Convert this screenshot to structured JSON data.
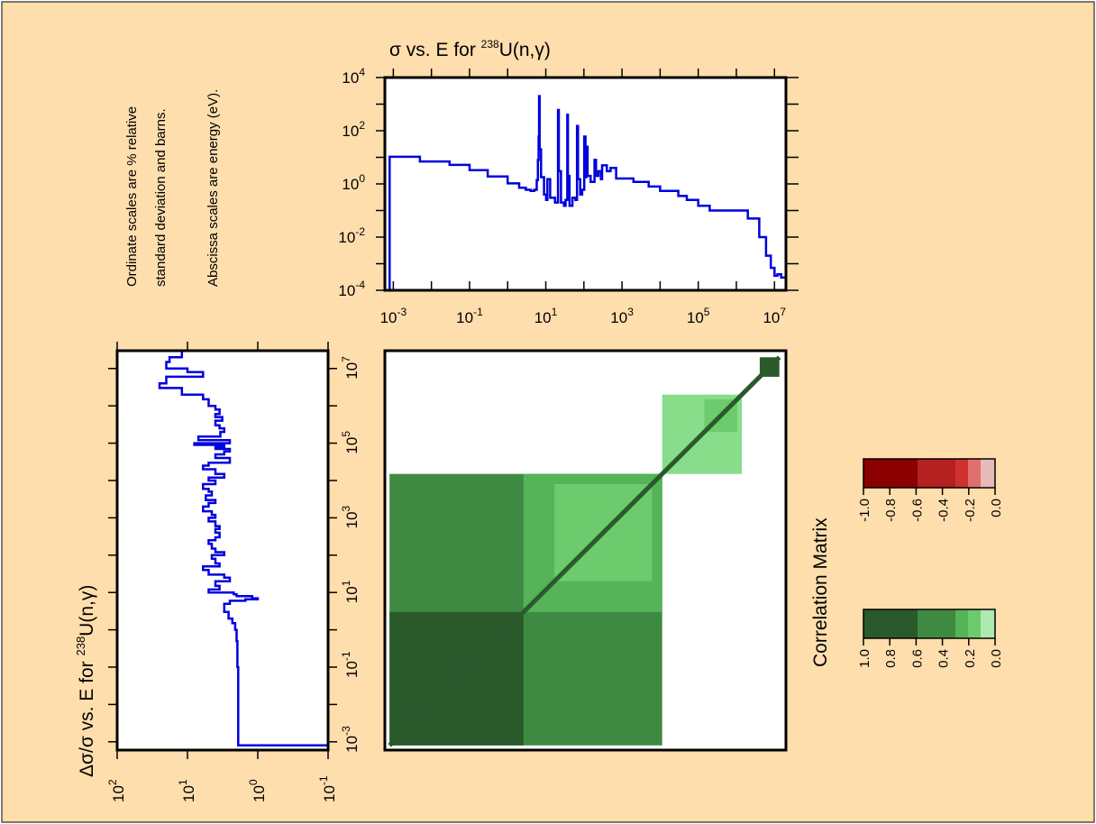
{
  "notes": {
    "line1": "Ordinate scales are % relative",
    "line2": "standard deviation and barns.",
    "line3": "Abscissa scales are energy (eV)."
  },
  "colors": {
    "background": "#ffdead",
    "curve": "#0000dd",
    "green_levels": [
      "#aee9b0",
      "#87dd8a",
      "#6ccb6d",
      "#56b458",
      "#3f8a42",
      "#2a5a2c"
    ],
    "red_levels": [
      "#e8b9b9",
      "#e07070",
      "#d03030",
      "#b52020",
      "#a41c1c",
      "#8b0000"
    ]
  },
  "chart_data": [
    {
      "id": "cross-section",
      "type": "line",
      "title": {
        "sigma": "σ",
        "rest": " vs. E for ",
        "mass": "238",
        "nuclide": "U(n,",
        "gamma": "γ",
        "close": ")"
      },
      "x_scale": "log",
      "y_scale": "log",
      "xlim": [
        0.0006,
        20000000
      ],
      "ylim": [
        0.0001,
        10000
      ],
      "x_ticks": [
        {
          "base": "10",
          "exp": "-3",
          "value": 0.001
        },
        {
          "base": "10",
          "exp": "-1",
          "value": 0.1
        },
        {
          "base": "10",
          "exp": "1",
          "value": 10
        },
        {
          "base": "10",
          "exp": "3",
          "value": 1000
        },
        {
          "base": "10",
          "exp": "5",
          "value": 100000
        },
        {
          "base": "10",
          "exp": "7",
          "value": 10000000
        }
      ],
      "y_ticks": [
        {
          "base": "10",
          "exp": "-4",
          "value": 0.0001
        },
        {
          "base": "10",
          "exp": "-2",
          "value": 0.01
        },
        {
          "base": "10",
          "exp": "0",
          "value": 1
        },
        {
          "base": "10",
          "exp": "2",
          "value": 100
        },
        {
          "base": "10",
          "exp": "4",
          "value": 10000
        }
      ],
      "series": [
        {
          "x": [
            0.0008,
            0.0008,
            0.002,
            0.005,
            0.01,
            0.03,
            0.1,
            0.3,
            1,
            2,
            3,
            4,
            5,
            5.8,
            6.2,
            6.5,
            6.67,
            6.9,
            7.5,
            9,
            10.2,
            11,
            13,
            15,
            17.5,
            20.9,
            22,
            25,
            30,
            33,
            36.7,
            38,
            42,
            50,
            60,
            66,
            70,
            80,
            90,
            102,
            110,
            116,
            125,
            150,
            190,
            208,
            240,
            280,
            300,
            400,
            500,
            700,
            1000,
            2000,
            5000,
            10000,
            30000,
            50000,
            100000,
            200000,
            500000,
            1000000,
            2000000,
            4000000,
            6000000,
            8000000,
            10000000,
            12000000,
            15000000,
            20000000
          ],
          "y": [
            0.0001,
            10.5,
            10.5,
            7,
            7,
            5.2,
            3.3,
            1.9,
            1.05,
            0.72,
            0.6,
            0.55,
            0.6,
            1.4,
            8,
            60,
            2000,
            20,
            1.8,
            0.4,
            0.25,
            1.5,
            0.3,
            0.3,
            0.2,
            600,
            3,
            0.2,
            0.15,
            0.25,
            400,
            2,
            0.15,
            0.3,
            0.25,
            150,
            1.5,
            0.4,
            0.6,
            60,
            1.8,
            25,
            2,
            1.2,
            8,
            2,
            3,
            1.5,
            5,
            3,
            4,
            1.6,
            1.6,
            1.2,
            0.8,
            0.55,
            0.35,
            0.25,
            0.15,
            0.1,
            0.1,
            0.1,
            0.05,
            0.01,
            0.002,
            0.0007,
            0.00035,
            0.0004,
            0.0003,
            9e-05
          ]
        }
      ]
    },
    {
      "id": "relative-uncertainty",
      "type": "line",
      "orientation": "rotated",
      "title": {
        "prefix": "Δσ/σ vs. E for ",
        "mass": "238",
        "nuclide": "U(n,",
        "gamma": "γ",
        "close": ")"
      },
      "x_scale": "log",
      "y_scale": "log",
      "value_axis_ticks": [
        {
          "base": "10",
          "exp": "2",
          "value": 100
        },
        {
          "base": "10",
          "exp": "1",
          "value": 10
        },
        {
          "base": "10",
          "exp": "0",
          "value": 1
        },
        {
          "base": "10",
          "exp": "-1",
          "value": 0.1
        }
      ],
      "energy_ticks": [
        {
          "base": "10",
          "exp": "7",
          "value": 10000000
        },
        {
          "base": "10",
          "exp": "5",
          "value": 100000
        },
        {
          "base": "10",
          "exp": "3",
          "value": 1000
        },
        {
          "base": "10",
          "exp": "1",
          "value": 10
        },
        {
          "base": "10",
          "exp": "-1",
          "value": 0.1
        },
        {
          "base": "10",
          "exp": "-3",
          "value": 0.001
        }
      ],
      "series": [
        {
          "energy": [
            30000000,
            20000000,
            15000000,
            10000000,
            8000000,
            6000000,
            4000000,
            3000000,
            2000000,
            1500000,
            1000000,
            800000,
            600000,
            500000,
            400000,
            300000,
            250000,
            200000,
            150000,
            120000,
            100000,
            90000,
            80000,
            70000,
            60000,
            50000,
            40000,
            30000,
            25000,
            20000,
            15000,
            12000,
            10000,
            8000,
            6000,
            5000,
            4000,
            3000,
            2500,
            2000,
            1500,
            1200,
            1000,
            800,
            600,
            500,
            400,
            300,
            250,
            200,
            150,
            120,
            100,
            80,
            60,
            50,
            40,
            30,
            25,
            20,
            15,
            12,
            10,
            9,
            8,
            7,
            6.6,
            6,
            5,
            4,
            3,
            2,
            1.5,
            1,
            0.5,
            0.1,
            0.01,
            0.002,
            0.0008
          ],
          "value": [
            12,
            18,
            20,
            10,
            6,
            20,
            25,
            12,
            6,
            5,
            4,
            3.5,
            4,
            3.2,
            4,
            3.5,
            3,
            3.4,
            7,
            2.5,
            8,
            3,
            4,
            2.5,
            3,
            4,
            2.5,
            5,
            6,
            4,
            3,
            5,
            4,
            6,
            5,
            4.5,
            5.5,
            4,
            5,
            6,
            4.5,
            4,
            5,
            4,
            3.5,
            4,
            3.5,
            4,
            5,
            4.5,
            4,
            3,
            4.5,
            4,
            3.5,
            6,
            5,
            3,
            2.5,
            4,
            3.5,
            5,
            2.2,
            2,
            1.2,
            1,
            1.5,
            2.5,
            3,
            3,
            2.6,
            2.3,
            2.1,
            2,
            1.95,
            1.9,
            1.9,
            1.9,
            1.9
          ]
        }
      ]
    },
    {
      "id": "correlation-matrix",
      "type": "heatmap",
      "axis_scale": "log",
      "range": [
        0.0006,
        30000000
      ],
      "blocks": [
        {
          "e1": 0.0008,
          "e2": 15000,
          "level": 4
        },
        {
          "e1": 0.0008,
          "e2": 3,
          "level": 5
        },
        {
          "e1": 3,
          "e2": 15000,
          "level": 3
        },
        {
          "e1": 20,
          "e2": 8000,
          "level": 2
        },
        {
          "e1": 15000,
          "e2": 2000000,
          "level": 1
        },
        {
          "e1": 200000,
          "e2": 1500000,
          "level": 2
        },
        {
          "e1": 6000000,
          "e2": 20000000,
          "level": 5
        }
      ],
      "legend_title": "Correlation Matrix",
      "negative_scale": {
        "ticks": [
          "-1.0",
          "-0.8",
          "-0.6",
          "-0.4",
          "-0.2",
          "0.0"
        ]
      },
      "positive_scale": {
        "ticks": [
          "1.0",
          "0.8",
          "0.6",
          "0.4",
          "0.2",
          "0.0"
        ]
      }
    }
  ]
}
